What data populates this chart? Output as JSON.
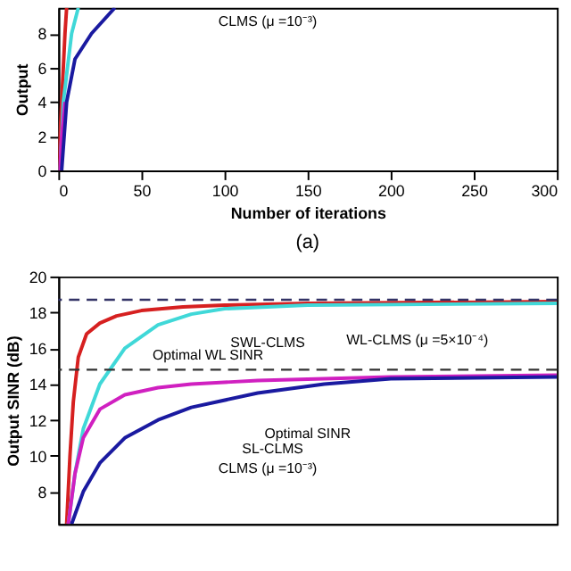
{
  "chart_data": [
    {
      "type": "line",
      "xlabel": "Number of iterations",
      "ylabel": "Output",
      "xlim": [
        0,
        300
      ],
      "xticks": [
        0,
        50,
        100,
        150,
        200,
        250,
        300
      ],
      "ylim": [
        0,
        9.5
      ],
      "yticks": [
        0,
        2,
        4,
        6,
        8
      ],
      "grid": false,
      "line_style": "solid",
      "marker": "none",
      "series": [
        {
          "color": "#d62020",
          "x": [
            0,
            2,
            4,
            5
          ],
          "values": [
            0,
            4,
            8,
            9.5
          ]
        },
        {
          "color": "#40d8d8",
          "x": [
            1,
            3,
            8,
            12
          ],
          "values": [
            0,
            4,
            8,
            9.5
          ]
        },
        {
          "color": "#d020c0",
          "x": [
            1,
            2,
            3,
            4
          ],
          "values": [
            0,
            2,
            3,
            4
          ]
        },
        {
          "color": "#1a1aa0",
          "x": [
            2,
            5,
            10,
            20,
            34
          ],
          "values": [
            0,
            4,
            6.5,
            8,
            9.5
          ]
        }
      ],
      "annotations": [
        "CLMS (μ =10⁻³)",
        "(a)"
      ]
    },
    {
      "type": "line",
      "ylabel": "Output SINR (dB)",
      "xlim": [
        0,
        300
      ],
      "ylim": [
        6.2,
        20
      ],
      "yticks": [
        8,
        10,
        12,
        14,
        16,
        18,
        20
      ],
      "tick_labels": "y",
      "grid": false,
      "line_style": "solid",
      "marker": "none",
      "series": [
        {
          "color": "#d62020",
          "x": [
            5,
            7,
            9,
            12,
            17,
            25,
            35,
            50,
            75,
            100,
            150,
            300
          ],
          "values": [
            6.2,
            10,
            13,
            15.5,
            16.8,
            17.4,
            17.8,
            18.1,
            18.3,
            18.4,
            18.5,
            18.6
          ]
        },
        {
          "color": "#40d8d8",
          "x": [
            6,
            10,
            15,
            25,
            40,
            60,
            80,
            100,
            150,
            300
          ],
          "values": [
            6.2,
            9,
            11.5,
            14,
            16,
            17.3,
            17.9,
            18.2,
            18.4,
            18.5
          ]
        },
        {
          "color": "#d020c0",
          "x": [
            6,
            10,
            15,
            25,
            40,
            60,
            80,
            120,
            200,
            300
          ],
          "values": [
            6.2,
            9,
            11,
            12.6,
            13.4,
            13.8,
            14,
            14.2,
            14.4,
            14.5
          ]
        },
        {
          "color": "#1a1aa0",
          "x": [
            8,
            15,
            25,
            40,
            60,
            80,
            120,
            160,
            200,
            300
          ],
          "values": [
            6.2,
            8,
            9.6,
            11,
            12,
            12.7,
            13.5,
            14,
            14.3,
            14.4
          ]
        }
      ],
      "ref_lines": [
        {
          "axis": "y",
          "value": 18.7,
          "color": "#333366",
          "line_style": "dashed"
        },
        {
          "axis": "y",
          "value": 14.8,
          "color": "#333333",
          "line_style": "dashed"
        }
      ],
      "annotations": [
        "SWL-CLMS",
        "WL-CLMS (μ =5×10⁻⁴)",
        "Optimal WL SINR",
        "Optimal SINR",
        "SL-CLMS",
        "CLMS (μ =10⁻³)"
      ]
    }
  ]
}
